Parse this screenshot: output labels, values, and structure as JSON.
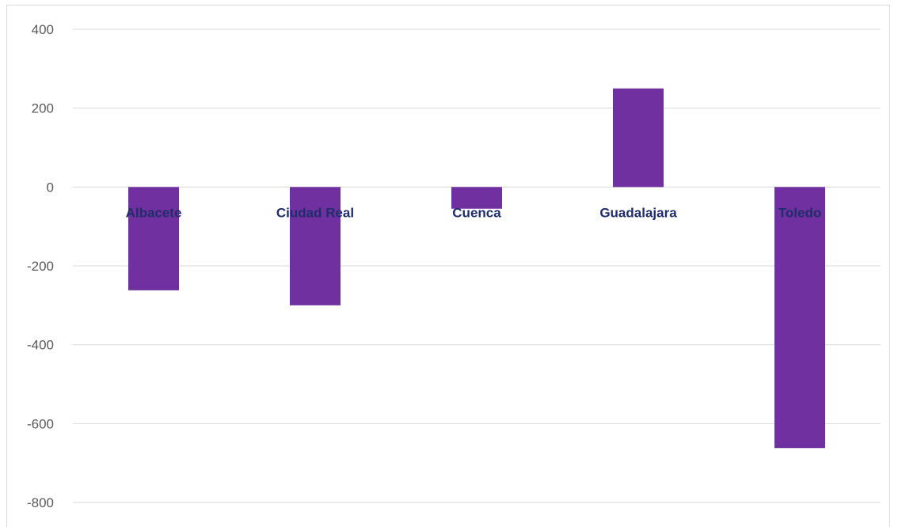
{
  "chart_data": {
    "type": "bar",
    "categories": [
      "Albacete",
      "Ciudad Real",
      "Cuenca",
      "Guadalajara",
      "Toledo"
    ],
    "values": [
      -262,
      -300,
      -55,
      250,
      -662
    ],
    "ylim": [
      -800,
      400
    ],
    "yticks": [
      400,
      200,
      0,
      -200,
      -400,
      -600,
      -800
    ],
    "grid": true,
    "bar_color": "#7030a0",
    "label_color": "#1f2d6b",
    "tick_color": "#595959",
    "grid_color": "#d9d9d9"
  }
}
